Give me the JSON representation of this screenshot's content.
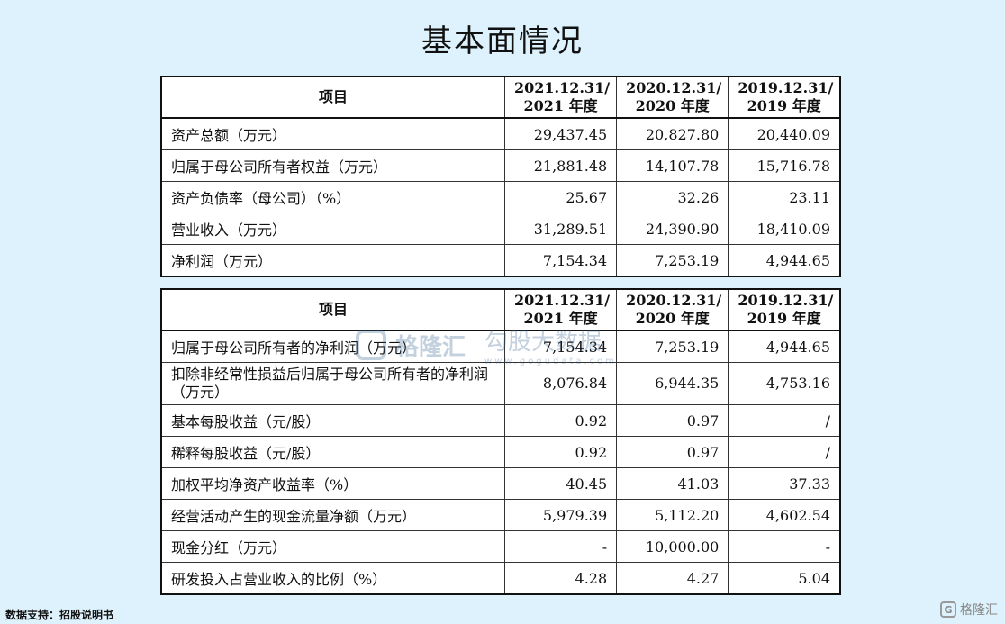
{
  "title": "基本面情况",
  "table1": {
    "headers": [
      "项目",
      "2021.12.31/\n2021 年度",
      "2020.12.31/\n2020 年度",
      "2019.12.31/\n2019 年度"
    ],
    "rows": [
      [
        "资产总额（万元）",
        "29,437.45",
        "20,827.80",
        "20,440.09"
      ],
      [
        "归属于母公司所有者权益（万元）",
        "21,881.48",
        "14,107.78",
        "15,716.78"
      ],
      [
        "资产负债率（母公司）（%）",
        "25.67",
        "32.26",
        "23.11"
      ],
      [
        "营业收入（万元）",
        "31,289.51",
        "24,390.90",
        "18,410.09"
      ],
      [
        "净利润（万元）",
        "7,154.34",
        "7,253.19",
        "4,944.65"
      ]
    ]
  },
  "table2": {
    "headers": [
      "项目",
      "2021.12.31/\n2021 年度",
      "2020.12.31/\n2020 年度",
      "2019.12.31/\n2019 年度"
    ],
    "rows": [
      [
        "归属于母公司所有者的净利润（万元）",
        "7,154.34",
        "7,253.19",
        "4,944.65"
      ],
      [
        "扣除非经常性损益后归属于母公司所有者的净利润（万元）",
        "8,076.84",
        "6,944.35",
        "4,753.16"
      ],
      [
        "基本每股收益（元/股）",
        "0.92",
        "0.97",
        "/"
      ],
      [
        "稀释每股收益（元/股）",
        "0.92",
        "0.97",
        "/"
      ],
      [
        "加权平均净资产收益率（%）",
        "40.45",
        "41.03",
        "37.33"
      ],
      [
        "经营活动产生的现金流量净额（万元）",
        "5,979.39",
        "5,112.20",
        "4,602.54"
      ],
      [
        "现金分红（万元）",
        "-",
        "10,000.00",
        "-"
      ],
      [
        "研发投入占营业收入的比例（%）",
        "4.28",
        "4.27",
        "5.04"
      ]
    ]
  },
  "source": "数据支持：招股说明书",
  "logo": {
    "mark": "G",
    "text": "格隆汇"
  },
  "watermark": {
    "left": "格隆汇",
    "right": "勾股大数据",
    "url": "www.gogudata.com"
  }
}
